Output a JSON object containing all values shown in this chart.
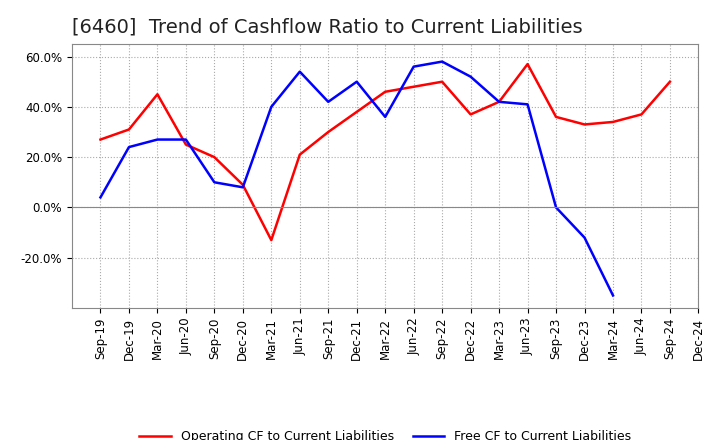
{
  "title": "[6460]  Trend of Cashflow Ratio to Current Liabilities",
  "ylim": [
    -0.4,
    0.65
  ],
  "yticks": [
    -0.2,
    0.0,
    0.2,
    0.4,
    0.6
  ],
  "ytick_labels": [
    "-20.0%",
    "0.0%",
    "20.0%",
    "40.0%",
    "60.0%"
  ],
  "legend_labels": [
    "Operating CF to Current Liabilities",
    "Free CF to Current Liabilities"
  ],
  "legend_colors": [
    "red",
    "blue"
  ],
  "x_labels": [
    "Sep-19",
    "Dec-19",
    "Mar-20",
    "Jun-20",
    "Sep-20",
    "Dec-20",
    "Mar-21",
    "Jun-21",
    "Sep-21",
    "Dec-21",
    "Mar-22",
    "Jun-22",
    "Sep-22",
    "Dec-22",
    "Mar-23",
    "Jun-23",
    "Sep-23",
    "Dec-23",
    "Mar-24",
    "Jun-24",
    "Sep-24",
    "Dec-24"
  ],
  "operating_cf": [
    0.27,
    0.31,
    0.45,
    0.25,
    0.2,
    0.09,
    -0.13,
    0.21,
    0.3,
    0.38,
    0.46,
    0.48,
    0.5,
    0.37,
    0.42,
    0.57,
    0.36,
    0.33,
    0.34,
    0.37,
    0.5,
    null
  ],
  "free_cf": [
    0.04,
    0.24,
    0.27,
    0.27,
    0.1,
    0.08,
    0.4,
    0.54,
    0.42,
    0.5,
    0.36,
    0.56,
    0.58,
    0.52,
    0.42,
    0.41,
    0.0,
    -0.12,
    -0.35,
    null,
    null,
    null
  ],
  "background_color": "#ffffff",
  "plot_bg_color": "#ffffff",
  "grid_color": "#aaaaaa",
  "border_color": "#888888",
  "title_fontsize": 14,
  "tick_fontsize": 8.5,
  "legend_fontsize": 9
}
